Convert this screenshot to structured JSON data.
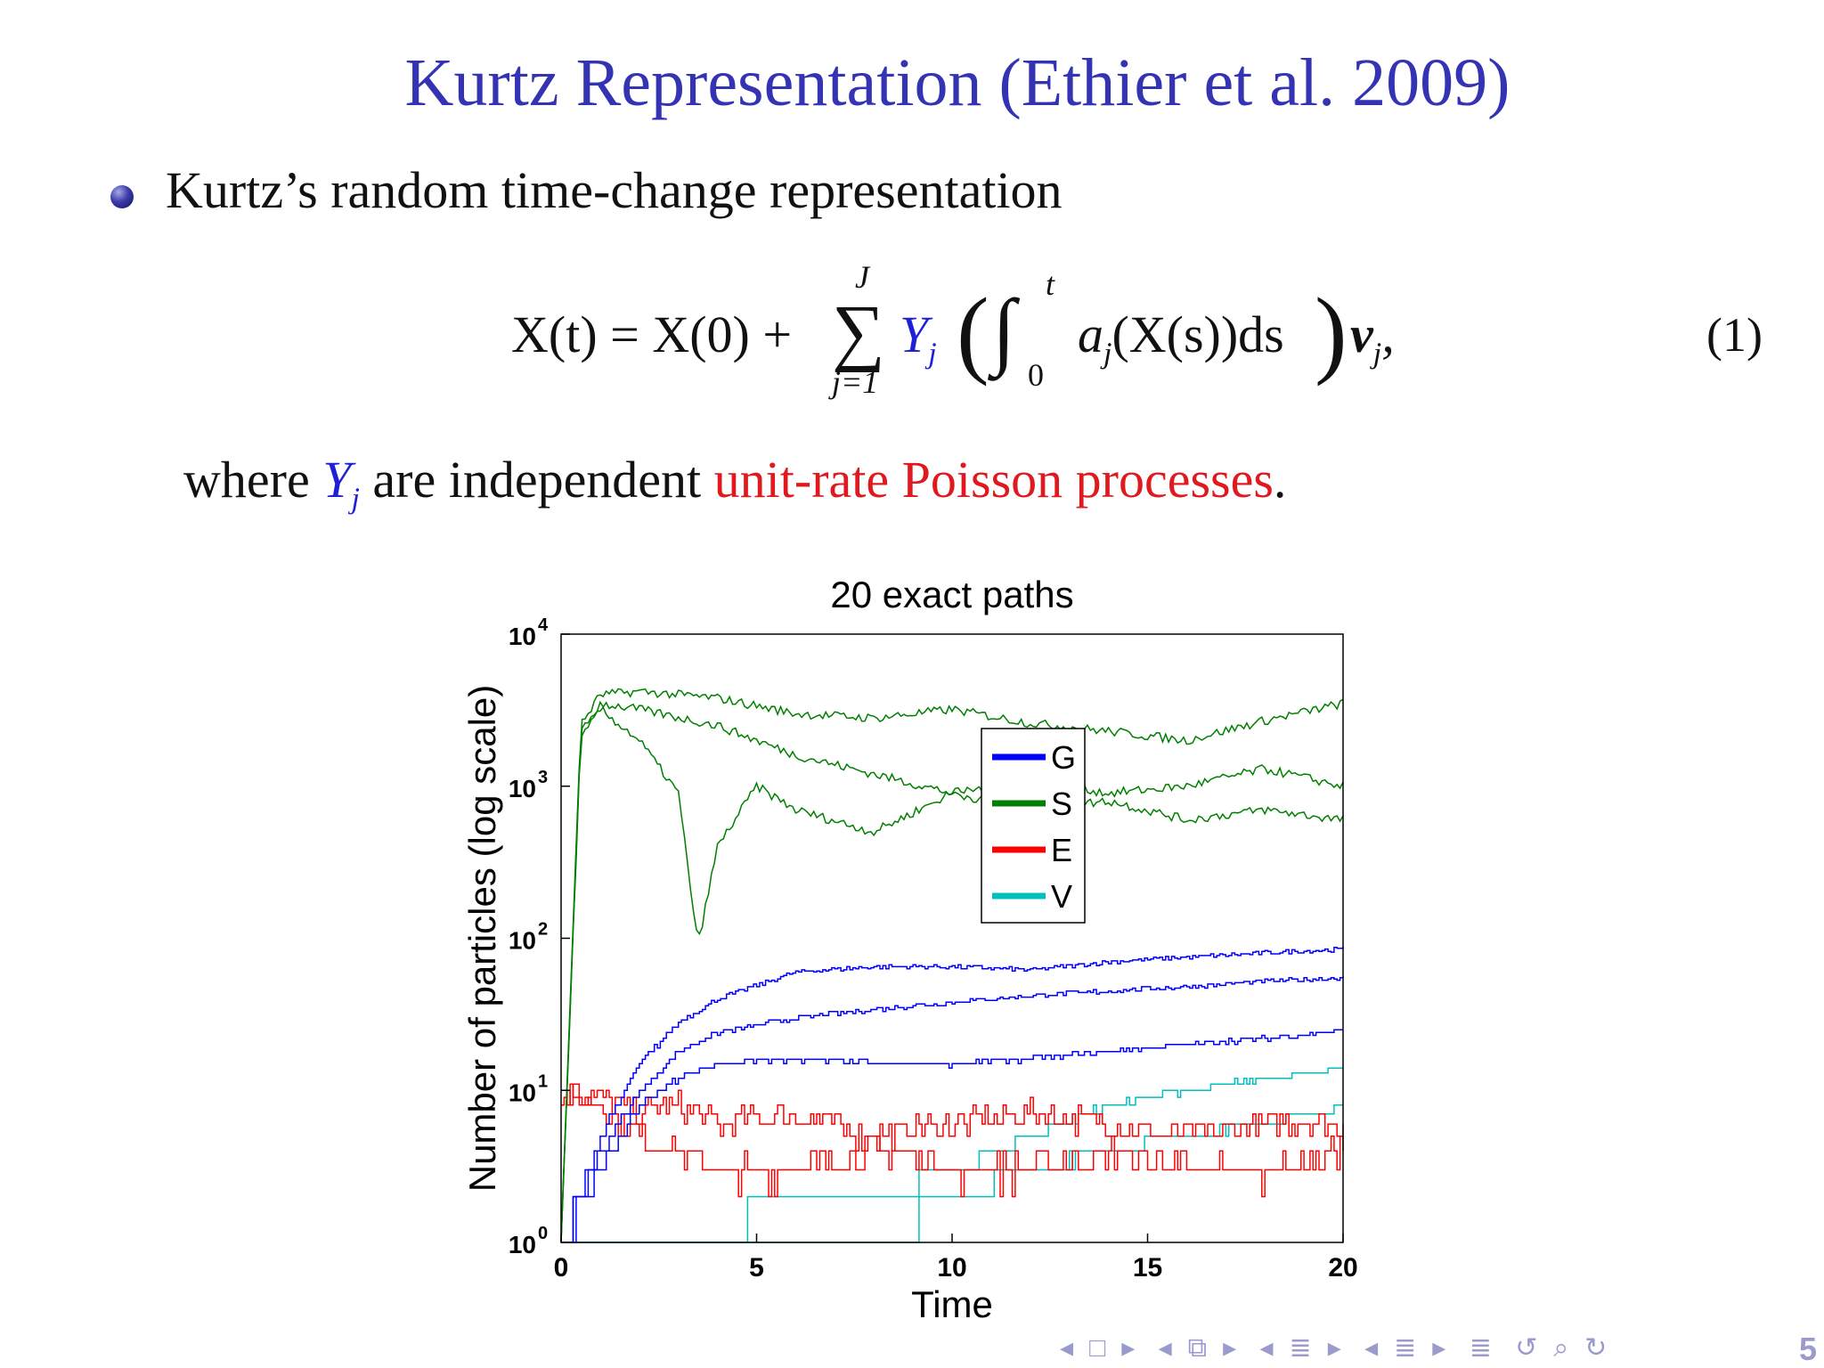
{
  "slide": {
    "title": "Kurtz Representation (Ethier et al. 2009)",
    "bullet": "Kurtz’s random time-change representation",
    "equation": {
      "lhs": "X(t) = X(0) +",
      "sum_top": "J",
      "sum_bottom": "j=1",
      "Y": "Y",
      "Y_sub": "j",
      "integral_top": "t",
      "integral_bottom": "0",
      "integrand": "a",
      "integrand_sub": "j",
      "integrand_rest": "(X(s))ds",
      "nu": "ν",
      "nu_sub": "j",
      "tail": ",",
      "number": "(1)"
    },
    "where": {
      "w1": "where",
      "Y": "Y",
      "Y_sub": "j",
      "w2": "are independent",
      "poisson": "unit-rate Poisson processes",
      "w3": "."
    },
    "page_number": "5",
    "colors": {
      "title": "#3333b3",
      "blue": "#1f1fd6",
      "red": "#e0191e"
    }
  },
  "chart_data": {
    "type": "line",
    "title": "20 exact paths",
    "xlabel": "Time",
    "ylabel": "Number of particles (log scale)",
    "xlim": [
      0,
      20
    ],
    "ylim": [
      1,
      10000
    ],
    "yscale": "log",
    "xticks": [
      "0",
      "5",
      "10",
      "15",
      "20"
    ],
    "yticks": [
      {
        "base": "10",
        "exp": "0"
      },
      {
        "base": "10",
        "exp": "1"
      },
      {
        "base": "10",
        "exp": "2"
      },
      {
        "base": "10",
        "exp": "3"
      },
      {
        "base": "10",
        "exp": "4"
      }
    ],
    "legend": {
      "placement": "center",
      "entries": [
        "G",
        "S",
        "E",
        "V"
      ]
    },
    "series_colors": {
      "G": "#0000ff",
      "S": "#007f00",
      "E": "#ff0000",
      "V": "#00bfbf"
    },
    "representative_paths": {
      "S": [
        {
          "t": [
            0,
            0.5,
            1,
            2,
            4,
            6,
            8,
            10,
            12,
            14,
            16,
            18,
            20
          ],
          "y": [
            1,
            2500,
            4000,
            4200,
            3800,
            3000,
            2800,
            3200,
            2600,
            2300,
            2000,
            2700,
            3500
          ]
        },
        {
          "t": [
            0,
            0.5,
            1,
            2,
            4,
            6,
            8,
            10,
            12,
            14,
            16,
            18,
            20
          ],
          "y": [
            1,
            2200,
            3500,
            3200,
            2500,
            1600,
            1200,
            900,
            1100,
            900,
            1000,
            1300,
            1000
          ]
        },
        {
          "t": [
            0,
            0.5,
            1,
            2,
            3,
            3.5,
            4,
            5,
            6,
            8,
            10,
            12,
            14,
            16,
            18,
            20
          ],
          "y": [
            1,
            2000,
            3200,
            2000,
            900,
            90,
            400,
            1000,
            700,
            500,
            900,
            700,
            800,
            600,
            700,
            600
          ]
        }
      ],
      "G": [
        {
          "t": [
            0,
            1,
            2,
            3,
            4,
            6,
            8,
            10,
            12,
            14,
            16,
            18,
            20
          ],
          "y": [
            1,
            5,
            15,
            28,
            40,
            60,
            65,
            65,
            62,
            70,
            75,
            80,
            85
          ]
        },
        {
          "t": [
            0,
            1,
            2,
            3,
            4,
            6,
            8,
            10,
            12,
            14,
            16,
            18,
            20
          ],
          "y": [
            1,
            4,
            10,
            18,
            24,
            30,
            34,
            38,
            42,
            45,
            48,
            52,
            55
          ]
        },
        {
          "t": [
            0,
            1,
            2,
            3,
            4,
            6,
            8,
            10,
            12,
            14,
            16,
            18,
            20
          ],
          "y": [
            1,
            3,
            8,
            12,
            15,
            16,
            15,
            15,
            16,
            18,
            20,
            22,
            25
          ]
        }
      ],
      "E": [
        {
          "t": [
            0,
            1,
            2,
            3,
            4,
            6,
            8,
            10,
            12,
            14,
            16,
            18,
            20
          ],
          "y": [
            10,
            9,
            7,
            8,
            6,
            7,
            5,
            6,
            7,
            6,
            5,
            6,
            6
          ]
        },
        {
          "t": [
            0,
            1,
            2,
            3,
            4,
            6,
            8,
            10,
            12,
            14,
            16,
            18,
            20
          ],
          "y": [
            10,
            8,
            5,
            4,
            3,
            3,
            4,
            3,
            3,
            4,
            3,
            3,
            4
          ]
        }
      ],
      "V": [
        {
          "t": [
            0,
            3,
            6,
            8,
            10,
            12,
            14,
            16,
            18,
            20
          ],
          "y": [
            1,
            1,
            2,
            2,
            3,
            5,
            8,
            10,
            12,
            14
          ]
        },
        {
          "t": [
            0,
            4,
            8,
            10,
            12,
            14,
            16,
            18,
            20
          ],
          "y": [
            1,
            1,
            1,
            2,
            3,
            4,
            5,
            6,
            8
          ]
        }
      ]
    }
  }
}
